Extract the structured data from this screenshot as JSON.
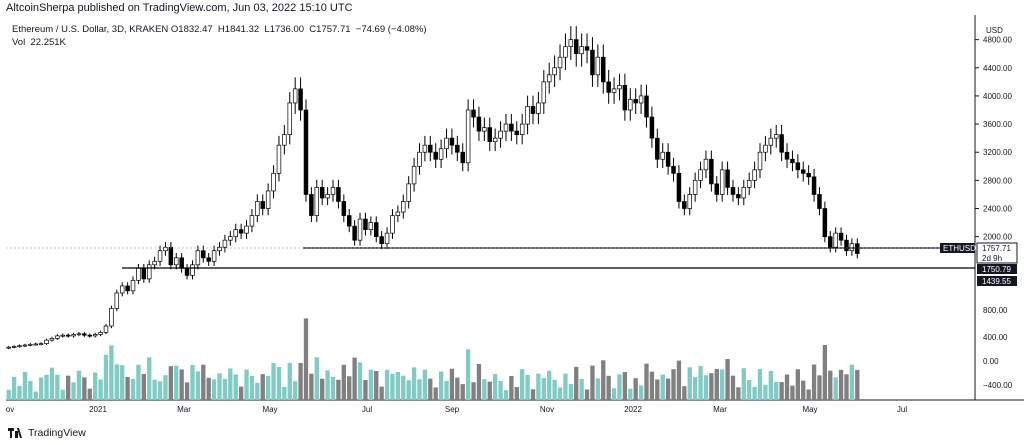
{
  "header": {
    "publisher_line": "AltcoinSherpa published on TradingView.com, Jun 03, 2022 15:10 UTC"
  },
  "legend": {
    "symbol_line": "Ethereum / U.S. Dollar, 3D, KRAKEN",
    "ohlc": "O1832.47  H1841.32  L1736.00  C1757.71  −74.69 (−4.08%)",
    "volume": "Vol  22.251K"
  },
  "footer": {
    "brand": "TradingView"
  },
  "colors": {
    "up": "#ffffff",
    "down": "#000000",
    "vol_up": "#80cbc4",
    "vol_down": "#808080",
    "grid": "#e0e3eb",
    "axis_line": "#131722",
    "support_line": "#000000"
  },
  "chart_data": {
    "type": "candlestick",
    "symbol": "ETHUSD",
    "price_axis": {
      "currency_label": "USD",
      "ticks": [
        4800,
        4400,
        4000,
        3600,
        3200,
        2800,
        2400,
        2000
      ],
      "ylim": [
        1100,
        5150
      ]
    },
    "volume_axis": {
      "ticks": [
        "800.00",
        "400.00",
        "0.00",
        "−400.00"
      ]
    },
    "time_axis": {
      "labels": [
        "ov",
        "2021",
        "Mar",
        "May",
        "Jul",
        "Sep",
        "Nov",
        "2022",
        "Mar",
        "May",
        "Jul"
      ]
    },
    "close_prices": [
      430,
      440,
      450,
      460,
      470,
      475,
      480,
      530,
      555,
      590,
      600,
      590,
      610,
      620,
      600,
      590,
      610,
      640,
      730,
      980,
      1200,
      1300,
      1230,
      1380,
      1550,
      1400,
      1600,
      1650,
      1800,
      1850,
      1600,
      1700,
      1550,
      1450,
      1600,
      1800,
      1700,
      1650,
      1800,
      1850,
      1950,
      2000,
      2100,
      2050,
      2150,
      2300,
      2500,
      2400,
      2650,
      2900,
      3300,
      3450,
      3900,
      4100,
      3800,
      2600,
      2300,
      2700,
      2550,
      2600,
      2700,
      2500,
      2300,
      2150,
      1950,
      2250,
      2100,
      2200,
      2000,
      1900,
      2050,
      2300,
      2350,
      2500,
      2750,
      3000,
      3200,
      3300,
      3200,
      3100,
      3250,
      3400,
      3300,
      3200,
      3050,
      3800,
      3700,
      3500,
      3550,
      3350,
      3400,
      3500,
      3600,
      3500,
      3450,
      3600,
      3850,
      3750,
      3900,
      4200,
      4300,
      4400,
      4550,
      4700,
      4800,
      4600,
      4700,
      4650,
      4300,
      4550,
      4200,
      4050,
      4100,
      4150,
      3800,
      3950,
      3900,
      4000,
      3700,
      3400,
      3100,
      3200,
      3000,
      2900,
      2500,
      2400,
      2600,
      2800,
      2950,
      3100,
      2750,
      2600,
      2950,
      2700,
      2600,
      2550,
      2700,
      2800,
      2950,
      3200,
      3300,
      3400,
      3450,
      3200,
      3100,
      3050,
      2950,
      2900,
      2850,
      2600,
      2400,
      2000,
      1850,
      2050,
      1950,
      1800,
      1900,
      1760
    ],
    "price_levels": [
      {
        "label": "ETHUSD",
        "value": "1757.71",
        "sub": "2d 9h",
        "type": "last"
      },
      {
        "label": "",
        "value": "1750.79",
        "type": "line"
      },
      {
        "label": "",
        "value": "1439.55",
        "type": "line"
      }
    ]
  }
}
